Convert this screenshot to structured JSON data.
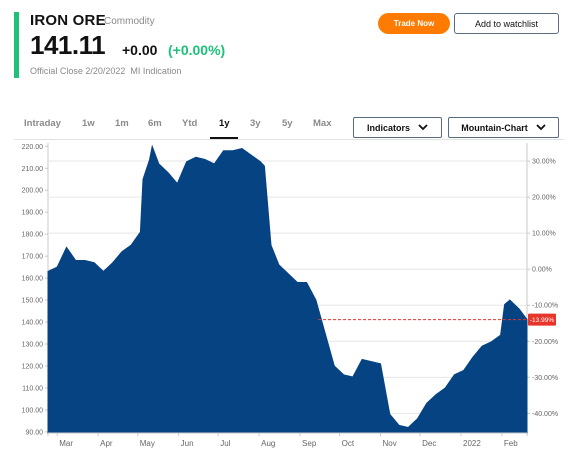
{
  "quote": {
    "name": "IRON ORE",
    "type": "Commodity",
    "price": "141.11",
    "change": "+0.00",
    "change_pct": "(+0.00%)",
    "close_label": "Official Close 2/20/2022",
    "source": "MI Indication",
    "up_color": "#1ec17a"
  },
  "actions": {
    "trade_label": "Trade Now",
    "watchlist_label": "Add to watchlist",
    "trade_color": "#ff7b00"
  },
  "ranges": [
    "Intraday",
    "1w",
    "1m",
    "6m",
    "Ytd",
    "1y",
    "3y",
    "5y",
    "Max"
  ],
  "active_range": "1y",
  "controls": {
    "indicators_label": "Indicators",
    "chart_type_label": "Mountain-Chart",
    "dropdown_icon": "chevron-down-icon"
  },
  "chart_data": {
    "type": "area",
    "title": "",
    "xlabel": "",
    "ylabel": "",
    "fill_color": "#064382",
    "x_ticks": [
      "Mar",
      "Apr",
      "May",
      "Jun",
      "Jul",
      "Aug",
      "Sep",
      "Oct",
      "Nov",
      "Dec",
      "2022",
      "Feb"
    ],
    "y_ticks": [
      "220.00",
      "210.00",
      "200.00",
      "190.00",
      "180.00",
      "170.00",
      "160.00",
      "150.00",
      "140.00",
      "130.00",
      "120.00",
      "110.00",
      "100.00",
      "90.00"
    ],
    "ylim": [
      89.5,
      221.5
    ],
    "pct_ticks": [
      "30.00%",
      "20.00%",
      "10.00%",
      "0.00%",
      "-10.00%",
      "-20.00%",
      "-30.00%",
      "-40.00%"
    ],
    "pct_marker": "-13.99%",
    "pct_marker_value": 141.11,
    "pct_marker_color": "#e8352a",
    "grid": true,
    "series": [
      {
        "x": [
          "2021-02-22",
          "2021-03-01",
          "2021-03-08",
          "2021-03-15",
          "2021-03-22",
          "2021-03-29",
          "2021-04-05",
          "2021-04-12",
          "2021-04-19",
          "2021-04-26",
          "2021-05-03",
          "2021-05-05",
          "2021-05-10",
          "2021-05-12",
          "2021-05-17",
          "2021-05-24",
          "2021-05-31",
          "2021-06-07",
          "2021-06-14",
          "2021-06-21",
          "2021-06-28",
          "2021-07-05",
          "2021-07-12",
          "2021-07-19",
          "2021-07-26",
          "2021-08-02",
          "2021-08-05",
          "2021-08-10",
          "2021-08-16",
          "2021-08-23",
          "2021-08-30",
          "2021-09-06",
          "2021-09-13",
          "2021-09-20",
          "2021-09-27",
          "2021-10-04",
          "2021-10-11",
          "2021-10-18",
          "2021-10-25",
          "2021-11-01",
          "2021-11-08",
          "2021-11-15",
          "2021-11-22",
          "2021-11-29",
          "2021-12-06",
          "2021-12-13",
          "2021-12-20",
          "2021-12-27",
          "2022-01-03",
          "2022-01-10",
          "2022-01-17",
          "2022-01-24",
          "2022-01-31",
          "2022-02-03",
          "2022-02-07",
          "2022-02-14",
          "2022-02-20"
        ],
        "values": [
          163,
          165,
          174,
          168,
          168,
          167,
          163,
          167,
          172,
          175,
          181,
          205,
          214,
          220,
          212,
          208,
          203,
          213,
          215,
          214,
          212,
          218,
          218,
          219,
          216,
          213,
          211,
          175,
          166,
          162,
          158,
          158,
          150,
          135,
          120,
          116,
          115,
          123,
          122,
          121,
          98,
          93,
          92,
          96,
          103,
          107,
          110,
          116,
          118,
          124,
          129,
          131,
          134,
          148,
          150,
          146,
          141.11
        ]
      }
    ]
  }
}
